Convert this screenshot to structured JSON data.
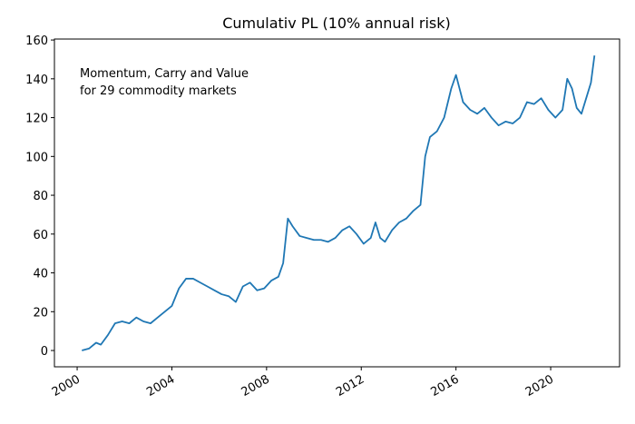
{
  "chart_data": {
    "type": "line",
    "title": "Cumulativ PL (10% annual risk)",
    "annotation": [
      "Momentum, Carry and Value",
      "for 29 commodity markets"
    ],
    "x": [
      2000.2,
      2000.5,
      2000.8,
      2001.0,
      2001.3,
      2001.6,
      2001.9,
      2002.2,
      2002.5,
      2002.8,
      2003.1,
      2003.4,
      2003.7,
      2004.0,
      2004.3,
      2004.6,
      2004.9,
      2005.2,
      2005.5,
      2005.8,
      2006.1,
      2006.4,
      2006.7,
      2007.0,
      2007.3,
      2007.6,
      2007.9,
      2008.2,
      2008.5,
      2008.7,
      2008.9,
      2009.1,
      2009.4,
      2009.7,
      2010.0,
      2010.3,
      2010.6,
      2010.9,
      2011.2,
      2011.5,
      2011.8,
      2012.1,
      2012.4,
      2012.6,
      2012.8,
      2013.0,
      2013.3,
      2013.6,
      2013.9,
      2014.2,
      2014.5,
      2014.7,
      2014.9,
      2015.2,
      2015.5,
      2015.8,
      2016.0,
      2016.3,
      2016.6,
      2016.9,
      2017.2,
      2017.5,
      2017.8,
      2018.1,
      2018.4,
      2018.7,
      2019.0,
      2019.3,
      2019.6,
      2019.9,
      2020.2,
      2020.5,
      2020.7,
      2020.9,
      2021.1,
      2021.3,
      2021.5,
      2021.7,
      2021.85
    ],
    "series": [
      {
        "name": "Cumulativ PL",
        "color": "#1f77b4",
        "values": [
          0,
          1,
          4,
          3,
          8,
          14,
          15,
          14,
          17,
          15,
          14,
          17,
          20,
          23,
          32,
          37,
          37,
          35,
          33,
          31,
          29,
          28,
          25,
          33,
          35,
          31,
          32,
          36,
          38,
          45,
          68,
          64,
          59,
          58,
          57,
          57,
          56,
          58,
          62,
          64,
          60,
          55,
          58,
          66,
          58,
          56,
          62,
          66,
          68,
          72,
          75,
          100,
          110,
          113,
          120,
          135,
          142,
          128,
          124,
          122,
          125,
          120,
          116,
          118,
          117,
          120,
          128,
          127,
          130,
          124,
          120,
          124,
          140,
          135,
          125,
          122,
          130,
          138,
          152
        ]
      }
    ],
    "xlim": [
      1999.04,
      2022.91
    ],
    "xticks": [
      2000,
      2004,
      2008,
      2012,
      2016,
      2020
    ],
    "ylim": [
      -8.4,
      160.5
    ],
    "yticks": [
      0,
      20,
      40,
      60,
      80,
      100,
      120,
      140,
      160
    ],
    "grid": false
  }
}
